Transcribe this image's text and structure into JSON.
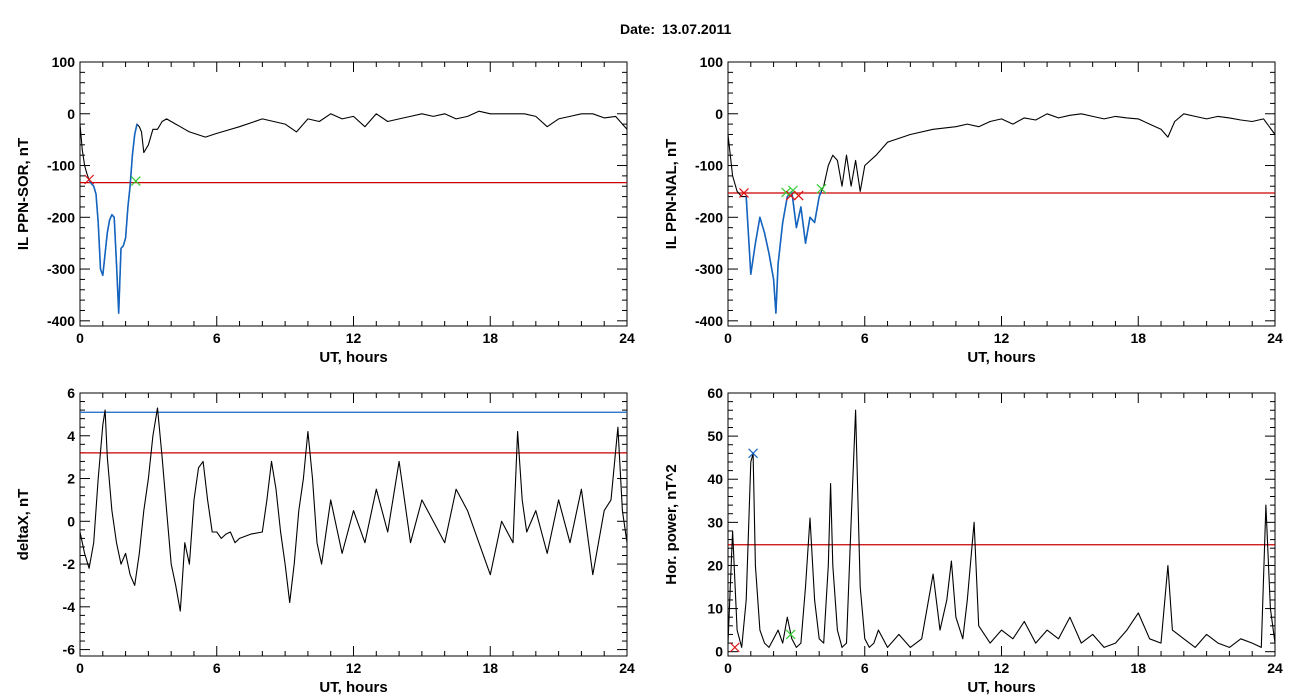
{
  "figure": {
    "date_label": "Date:",
    "date_value": "13.07.2011"
  },
  "colors": {
    "trace": "#000000",
    "threshold_red": "#cc0000",
    "threshold_blue": "#1565c0",
    "event_blue": "#1565c0",
    "marker_red": "#dd1111",
    "marker_green": "#33cc33",
    "marker_blue": "#1565c0"
  },
  "chart_data": [
    {
      "type": "line",
      "ylabel": "IL PPN-SOR, nT",
      "xlabel": "UT, hours",
      "xlim": [
        0,
        24
      ],
      "ylim": [
        -410,
        100
      ],
      "xticks": [
        0,
        6,
        12,
        18,
        24
      ],
      "yticks": [
        -400,
        -300,
        -200,
        -100,
        0,
        100
      ],
      "hlines": [
        {
          "y": -133,
          "color": "red"
        }
      ],
      "event": {
        "x_start": 0.35,
        "x_end": 2.5,
        "color": "blue"
      },
      "markers": [
        {
          "x": 0.4,
          "y": -127,
          "color": "red"
        },
        {
          "x": 2.45,
          "y": -130,
          "color": "green"
        }
      ],
      "series": [
        {
          "x": [
            0.0,
            0.1,
            0.2,
            0.3,
            0.4,
            0.5,
            0.6,
            0.7,
            0.8,
            0.9,
            1.0,
            1.1,
            1.2,
            1.3,
            1.4,
            1.5,
            1.6,
            1.7,
            1.8,
            1.9,
            2.0,
            2.1,
            2.2,
            2.3,
            2.4,
            2.5,
            2.6,
            2.7,
            2.8,
            3.0,
            3.2,
            3.4,
            3.6,
            3.8,
            4.0,
            4.2,
            4.4,
            4.6,
            4.8,
            5.0,
            5.5,
            6.0,
            7.0,
            8.0,
            9.0,
            9.5,
            10.0,
            10.5,
            11.0,
            11.5,
            12.0,
            12.5,
            13.0,
            13.5,
            14.0,
            14.5,
            15.0,
            15.5,
            16.0,
            16.5,
            17.0,
            17.5,
            18.0,
            18.5,
            19.0,
            19.5,
            20.0,
            20.5,
            21.0,
            21.5,
            22.0,
            22.5,
            23.0,
            23.5,
            24.0
          ],
          "values": [
            -20,
            -70,
            -100,
            -115,
            -128,
            -135,
            -140,
            -155,
            -210,
            -300,
            -312,
            -270,
            -230,
            -205,
            -195,
            -200,
            -290,
            -385,
            -260,
            -255,
            -240,
            -180,
            -140,
            -80,
            -40,
            -20,
            -25,
            -35,
            -75,
            -60,
            -30,
            -30,
            -15,
            -10,
            -15,
            -20,
            -25,
            -30,
            -35,
            -38,
            -45,
            -38,
            -25,
            -10,
            -20,
            -35,
            -10,
            -15,
            0,
            -10,
            -5,
            -25,
            0,
            -15,
            -10,
            -5,
            0,
            -5,
            0,
            -10,
            -5,
            5,
            0,
            0,
            0,
            0,
            -5,
            -25,
            -10,
            -5,
            0,
            0,
            -8,
            -5,
            -30
          ]
        }
      ]
    },
    {
      "type": "line",
      "ylabel": "IL PPN-NAL, nT",
      "xlabel": "UT, hours",
      "xlim": [
        0,
        24
      ],
      "ylim": [
        -410,
        100
      ],
      "xticks": [
        0,
        6,
        12,
        18,
        24
      ],
      "yticks": [
        -400,
        -300,
        -200,
        -100,
        0,
        100
      ],
      "hlines": [
        {
          "y": -153,
          "color": "red"
        }
      ],
      "event": {
        "x_start": 0.7,
        "x_end": 4.1,
        "color": "blue"
      },
      "markers": [
        {
          "x": 0.7,
          "y": -153,
          "color": "red"
        },
        {
          "x": 2.55,
          "y": -152,
          "color": "green"
        },
        {
          "x": 2.75,
          "y": -158,
          "color": "red"
        },
        {
          "x": 2.85,
          "y": -148,
          "color": "green"
        },
        {
          "x": 3.1,
          "y": -158,
          "color": "red"
        },
        {
          "x": 4.1,
          "y": -145,
          "color": "green"
        }
      ],
      "series": [
        {
          "x": [
            0.0,
            0.1,
            0.2,
            0.4,
            0.6,
            0.8,
            1.0,
            1.2,
            1.4,
            1.6,
            1.8,
            2.0,
            2.1,
            2.2,
            2.3,
            2.4,
            2.6,
            2.8,
            3.0,
            3.2,
            3.4,
            3.6,
            3.8,
            4.0,
            4.1,
            4.2,
            4.4,
            4.6,
            4.8,
            5.0,
            5.2,
            5.4,
            5.6,
            5.8,
            6.0,
            6.5,
            7.0,
            8.0,
            9.0,
            10.0,
            10.5,
            11.0,
            11.5,
            12.0,
            12.5,
            13.0,
            13.5,
            14.0,
            14.5,
            15.0,
            15.5,
            16.0,
            16.5,
            17.0,
            17.5,
            18.0,
            18.5,
            19.0,
            19.3,
            19.6,
            20.0,
            20.5,
            21.0,
            21.5,
            22.0,
            22.5,
            23.0,
            23.5,
            24.0
          ],
          "values": [
            -40,
            -80,
            -120,
            -150,
            -160,
            -160,
            -310,
            -250,
            -200,
            -230,
            -270,
            -320,
            -385,
            -290,
            -250,
            -210,
            -160,
            -150,
            -220,
            -180,
            -250,
            -200,
            -210,
            -160,
            -150,
            -140,
            -100,
            -80,
            -90,
            -140,
            -80,
            -140,
            -90,
            -150,
            -100,
            -80,
            -55,
            -40,
            -30,
            -25,
            -20,
            -25,
            -15,
            -10,
            -20,
            -8,
            -12,
            0,
            -8,
            -3,
            0,
            -5,
            -10,
            -5,
            -8,
            -10,
            -20,
            -30,
            -45,
            -15,
            0,
            -5,
            -10,
            -5,
            -8,
            -12,
            -15,
            -10,
            -40
          ]
        }
      ]
    },
    {
      "type": "line",
      "ylabel": "deltaX, nT",
      "xlabel": "UT, hours",
      "xlim": [
        0,
        24
      ],
      "ylim": [
        -6.3,
        6
      ],
      "xticks": [
        0,
        6,
        12,
        18,
        24
      ],
      "yticks": [
        -6,
        -4,
        -2,
        0,
        2,
        4,
        6
      ],
      "hlines": [
        {
          "y": 5.1,
          "color": "blue"
        },
        {
          "y": 3.2,
          "color": "red"
        }
      ],
      "series": [
        {
          "x": [
            0.0,
            0.2,
            0.4,
            0.6,
            0.8,
            1.0,
            1.1,
            1.2,
            1.4,
            1.6,
            1.8,
            2.0,
            2.2,
            2.4,
            2.6,
            2.8,
            3.0,
            3.2,
            3.4,
            3.6,
            3.8,
            4.0,
            4.2,
            4.4,
            4.6,
            4.8,
            5.0,
            5.2,
            5.4,
            5.6,
            5.8,
            6.0,
            6.2,
            6.4,
            6.6,
            6.8,
            7.0,
            7.5,
            8.0,
            8.2,
            8.4,
            8.6,
            8.8,
            9.0,
            9.2,
            9.4,
            9.6,
            9.8,
            10.0,
            10.2,
            10.4,
            10.6,
            10.8,
            11.0,
            11.5,
            12.0,
            12.5,
            13.0,
            13.5,
            14.0,
            14.5,
            15.0,
            15.5,
            16.0,
            16.5,
            17.0,
            17.5,
            18.0,
            18.5,
            19.0,
            19.2,
            19.4,
            19.6,
            20.0,
            20.5,
            21.0,
            21.5,
            22.0,
            22.5,
            23.0,
            23.3,
            23.6,
            23.8,
            24.0
          ],
          "values": [
            -0.5,
            -1.5,
            -2.2,
            -1.0,
            2.0,
            4.5,
            5.2,
            3.0,
            0.5,
            -1.0,
            -2.0,
            -1.5,
            -2.5,
            -3.0,
            -1.5,
            0.5,
            2.0,
            4.0,
            5.3,
            3.0,
            0.5,
            -2.0,
            -3.0,
            -4.2,
            -1.0,
            -2.0,
            1.0,
            2.5,
            2.8,
            1.0,
            -0.5,
            -0.5,
            -0.8,
            -0.6,
            -0.5,
            -1.0,
            -0.8,
            -0.6,
            -0.5,
            1.0,
            2.8,
            1.5,
            -0.5,
            -2.0,
            -3.8,
            -2.0,
            0.5,
            2.0,
            4.2,
            2.0,
            -1.0,
            -2.0,
            -0.5,
            1.0,
            -1.5,
            0.5,
            -1.0,
            1.5,
            -0.5,
            2.8,
            -1.0,
            1.0,
            0.0,
            -1.0,
            1.5,
            0.5,
            -1.0,
            -2.5,
            0.0,
            -1.0,
            4.2,
            1.0,
            -0.5,
            0.5,
            -1.5,
            1.0,
            -1.0,
            1.5,
            -2.5,
            0.5,
            1.0,
            4.4,
            0.5,
            -1.0
          ]
        }
      ]
    },
    {
      "type": "line",
      "ylabel": "Hor. power, nT^2",
      "xlabel": "UT, hours",
      "xlim": [
        0,
        24
      ],
      "ylim": [
        -1,
        60
      ],
      "xticks": [
        0,
        6,
        12,
        18,
        24
      ],
      "yticks": [
        0,
        10,
        20,
        30,
        40,
        50,
        60
      ],
      "hlines": [
        {
          "y": 24.8,
          "color": "red"
        }
      ],
      "markers": [
        {
          "x": 0.3,
          "y": 1,
          "color": "red"
        },
        {
          "x": 1.1,
          "y": 46,
          "color": "blue"
        },
        {
          "x": 2.75,
          "y": 4,
          "color": "green"
        }
      ],
      "series": [
        {
          "x": [
            0.0,
            0.2,
            0.4,
            0.6,
            0.8,
            1.0,
            1.1,
            1.2,
            1.4,
            1.6,
            1.8,
            2.0,
            2.2,
            2.4,
            2.6,
            2.8,
            3.0,
            3.2,
            3.4,
            3.6,
            3.8,
            4.0,
            4.2,
            4.4,
            4.5,
            4.6,
            4.8,
            5.0,
            5.2,
            5.4,
            5.6,
            5.8,
            6.0,
            6.2,
            6.4,
            6.6,
            6.8,
            7.0,
            7.5,
            8.0,
            8.5,
            9.0,
            9.3,
            9.6,
            9.8,
            10.0,
            10.3,
            10.5,
            10.8,
            11.0,
            11.5,
            12.0,
            12.5,
            13.0,
            13.5,
            14.0,
            14.5,
            15.0,
            15.5,
            16.0,
            16.5,
            17.0,
            17.5,
            18.0,
            18.5,
            19.0,
            19.3,
            19.5,
            20.0,
            20.5,
            21.0,
            21.5,
            22.0,
            22.5,
            23.0,
            23.4,
            23.6,
            23.8,
            24.0
          ],
          "values": [
            2,
            28,
            5,
            1,
            12,
            44,
            46,
            20,
            5,
            2,
            1,
            3,
            5,
            2,
            8,
            3,
            1,
            2,
            15,
            31,
            12,
            3,
            2,
            20,
            39,
            20,
            5,
            1,
            2,
            30,
            56,
            15,
            3,
            1,
            2,
            5,
            3,
            1,
            4,
            1,
            3,
            18,
            5,
            12,
            21,
            8,
            3,
            12,
            30,
            6,
            2,
            5,
            3,
            7,
            2,
            5,
            3,
            8,
            2,
            4,
            1,
            2,
            5,
            9,
            3,
            2,
            20,
            5,
            3,
            1,
            4,
            2,
            1,
            3,
            2,
            1,
            34,
            10,
            2
          ]
        }
      ]
    }
  ]
}
